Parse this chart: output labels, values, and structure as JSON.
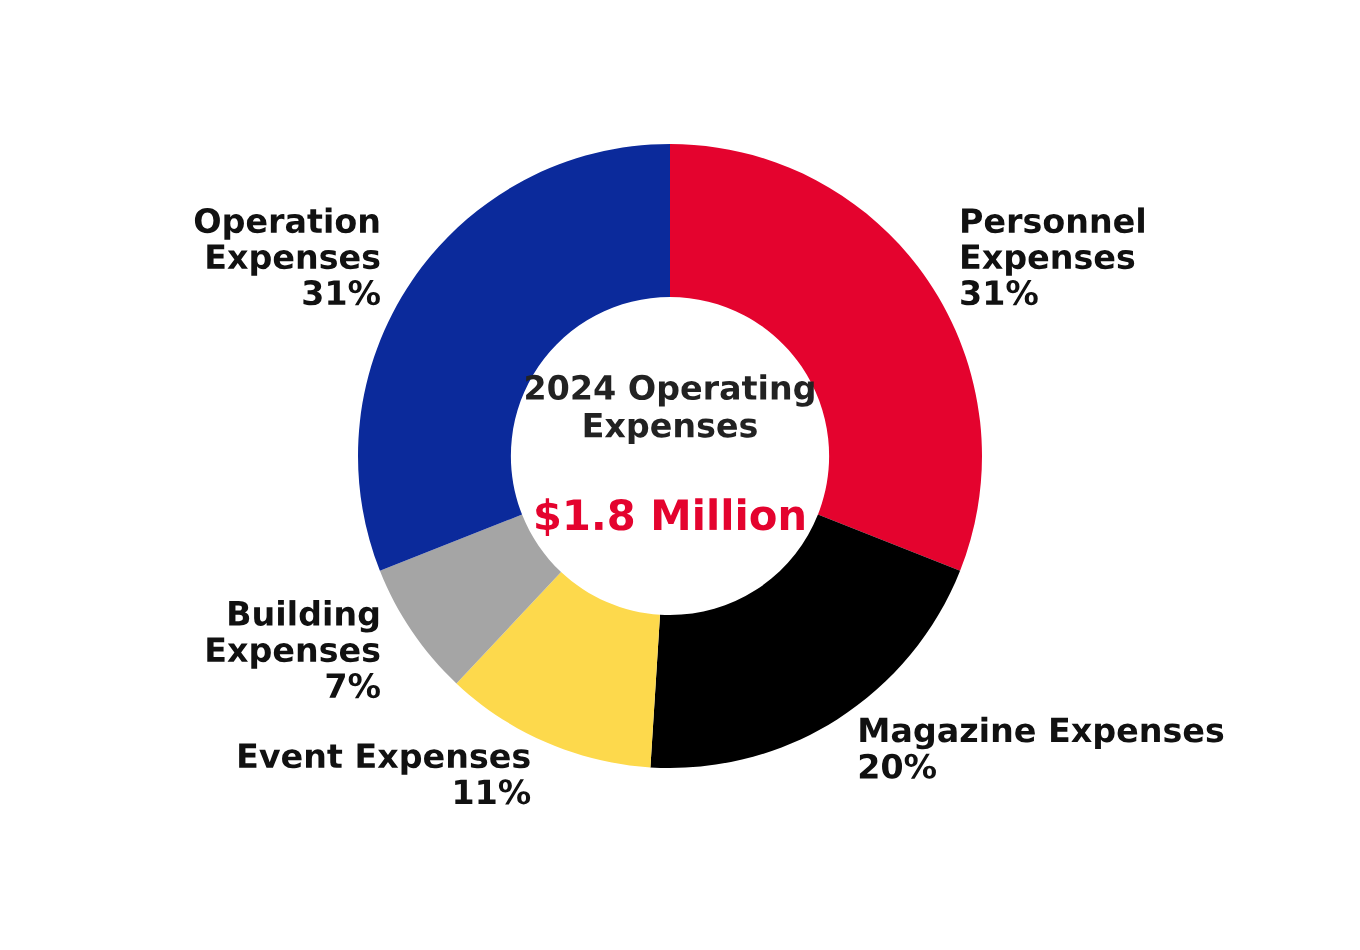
{
  "chart_data": {
    "type": "donut",
    "title": "2024 Operating\nExpenses",
    "annotations": [
      "$1.8 Million"
    ],
    "categories": [
      "Personnel\nExpenses",
      "Magazine Expenses",
      "Event Expenses",
      "Building\nExpenses",
      "Operation\nExpenses"
    ],
    "values": [
      31,
      20,
      11,
      7,
      31
    ],
    "value_labels": [
      "31%",
      "20%",
      "11%",
      "7%",
      "31%"
    ],
    "colors": [
      "#e4032e",
      "#000000",
      "#fdd94c",
      "#a5a5a5",
      "#0b2a9b"
    ],
    "legend": false
  }
}
